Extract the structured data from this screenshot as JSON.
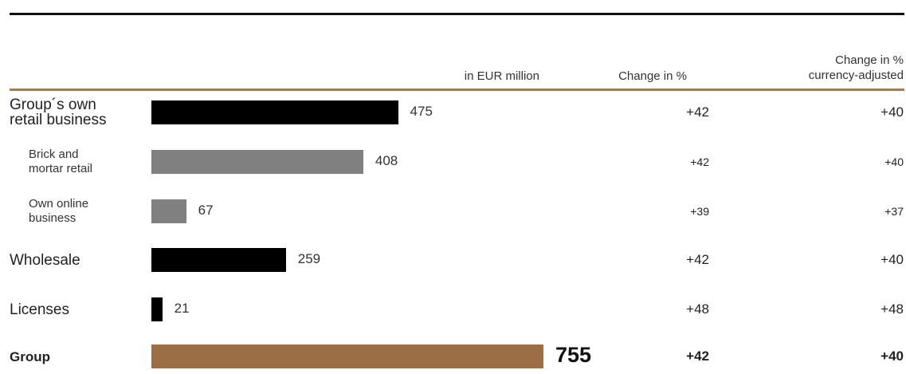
{
  "chart_data": {
    "type": "bar",
    "orientation": "horizontal",
    "unit_label": "in EUR million",
    "columns": [
      "Change in %",
      "Change in % currency-adjusted"
    ],
    "colors": {
      "main": "#000000",
      "sub": "#808080",
      "total": "#9b6e45",
      "rule": "#a87a4d"
    },
    "rows": [
      {
        "label": [
          "Group´s own",
          "retail business"
        ],
        "value": 475,
        "change": "+42",
        "change_fx": "+40",
        "kind": "main"
      },
      {
        "label": [
          "Brick and",
          "mortar retail"
        ],
        "value": 408,
        "change": "+42",
        "change_fx": "+40",
        "kind": "sub"
      },
      {
        "label": [
          "Own online",
          "business"
        ],
        "value": 67,
        "change": "+39",
        "change_fx": "+37",
        "kind": "sub"
      },
      {
        "label": [
          "Wholesale"
        ],
        "value": 259,
        "change": "+42",
        "change_fx": "+40",
        "kind": "main"
      },
      {
        "label": [
          "Licenses"
        ],
        "value": 21,
        "change": "+48",
        "change_fx": "+48",
        "kind": "main"
      },
      {
        "label": [
          "Group"
        ],
        "value": 755,
        "change": "+42",
        "change_fx": "+40",
        "kind": "total"
      }
    ]
  },
  "header": {
    "unit": "in EUR million",
    "change": "Change in %",
    "change_fx_line1": "Change in %",
    "change_fx_line2": "currency-adjusted"
  }
}
